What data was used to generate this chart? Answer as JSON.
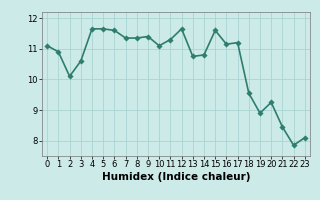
{
  "x": [
    0,
    1,
    2,
    3,
    4,
    5,
    6,
    7,
    8,
    9,
    10,
    11,
    12,
    13,
    14,
    15,
    16,
    17,
    18,
    19,
    20,
    21,
    22,
    23
  ],
  "y": [
    11.1,
    10.9,
    10.1,
    10.6,
    11.65,
    11.65,
    11.6,
    11.35,
    11.35,
    11.4,
    11.1,
    11.3,
    11.65,
    10.75,
    10.8,
    11.6,
    11.15,
    11.2,
    9.55,
    8.9,
    9.25,
    8.45,
    7.85,
    8.1
  ],
  "line_color": "#2e7d6e",
  "marker_color": "#2e7d6e",
  "bg_color": "#cceae8",
  "grid_color": "#aad4d2",
  "xlabel": "Humidex (Indice chaleur)",
  "xlim": [
    -0.5,
    23.5
  ],
  "ylim": [
    7.5,
    12.2
  ],
  "yticks": [
    8,
    9,
    10,
    11,
    12
  ],
  "xticks": [
    0,
    1,
    2,
    3,
    4,
    5,
    6,
    7,
    8,
    9,
    10,
    11,
    12,
    13,
    14,
    15,
    16,
    17,
    18,
    19,
    20,
    21,
    22,
    23
  ],
  "tick_fontsize": 6.0,
  "xlabel_fontsize": 7.5,
  "line_width": 1.2,
  "marker_size": 2.8
}
